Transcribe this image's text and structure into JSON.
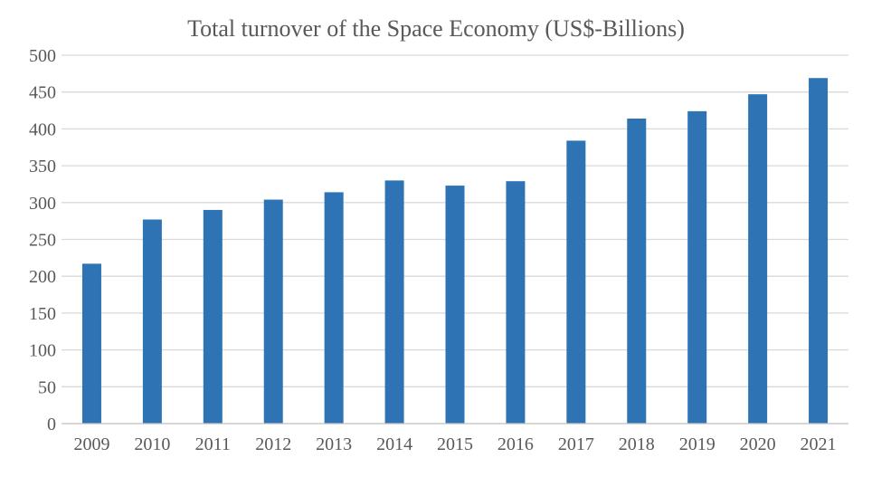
{
  "chart_data": {
    "type": "bar",
    "title": "Total turnover of the Space Economy (US$-Billions)",
    "xlabel": "",
    "ylabel": "",
    "categories": [
      "2009",
      "2010",
      "2011",
      "2012",
      "2013",
      "2014",
      "2015",
      "2016",
      "2017",
      "2018",
      "2019",
      "2020",
      "2021"
    ],
    "values": [
      217,
      277,
      290,
      304,
      314,
      330,
      323,
      329,
      384,
      414,
      424,
      447,
      469
    ],
    "ylim": [
      0,
      500
    ],
    "yticks": [
      0,
      50,
      100,
      150,
      200,
      250,
      300,
      350,
      400,
      450,
      500
    ],
    "grid": true,
    "legend": "none",
    "bar_color": "#2e74b5"
  }
}
